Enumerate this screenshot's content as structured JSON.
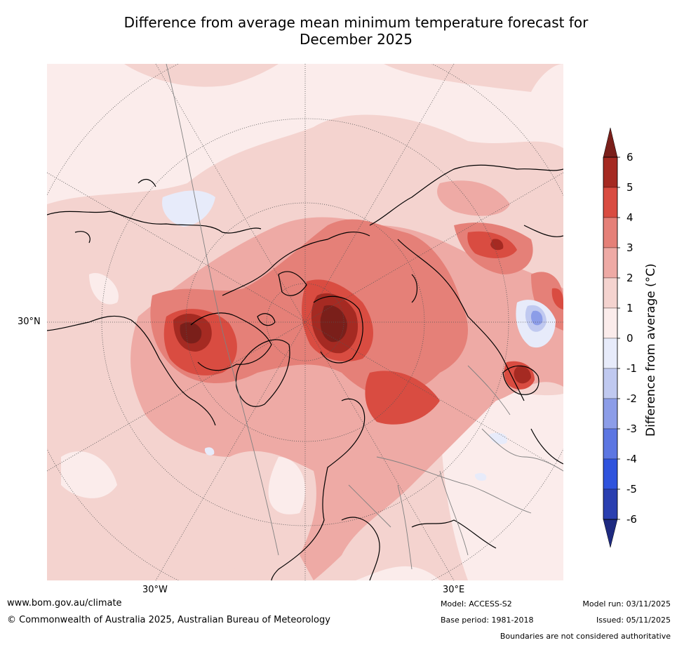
{
  "title": {
    "line1": "Difference from average mean minimum temperature forecast for",
    "line2": "December 2025"
  },
  "map": {
    "projection": "north-polar",
    "lat_label": "30°N",
    "lon_labels": [
      "30°W",
      "30°E"
    ]
  },
  "colorbar": {
    "title": "Difference from average (°C)",
    "ticks": [
      "6",
      "5",
      "4",
      "3",
      "2",
      "1",
      "0",
      "-1",
      "-2",
      "-3",
      "-4",
      "-5",
      "-6"
    ],
    "bins": [
      {
        "range": "5 to 6",
        "color": "#a52a22"
      },
      {
        "range": "4 to 5",
        "color": "#d94c41"
      },
      {
        "range": "3 to 4",
        "color": "#e58078"
      },
      {
        "range": "2 to 3",
        "color": "#eeaaa5"
      },
      {
        "range": "1 to 2",
        "color": "#f4d3cf"
      },
      {
        "range": "0 to 1",
        "color": "#fbeceb"
      },
      {
        "range": "-1 to 0",
        "color": "#e7ebfa"
      },
      {
        "range": "-2 to -1",
        "color": "#c0c9f0"
      },
      {
        "range": "-3 to -2",
        "color": "#8c9de8"
      },
      {
        "range": "-4 to -3",
        "color": "#5c76e2"
      },
      {
        "range": "-5 to -4",
        "color": "#2f53dd"
      },
      {
        "range": "-6 to -5",
        "color": "#2a3fb0"
      }
    ],
    "over_color": "#7a1f1a",
    "under_color": "#1e2a80"
  },
  "footer": {
    "website": "www.bom.gov.au/climate",
    "copyright": "© Commonwealth of Australia 2025, Australian Bureau of Meteorology",
    "model": "Model: ACCESS-S2",
    "base_period": "Base period: 1981-2018",
    "model_run": "Model run: 03/11/2025",
    "issued": "Issued: 05/11/2025",
    "disclaimer": "Boundaries are not considered authoritative"
  }
}
